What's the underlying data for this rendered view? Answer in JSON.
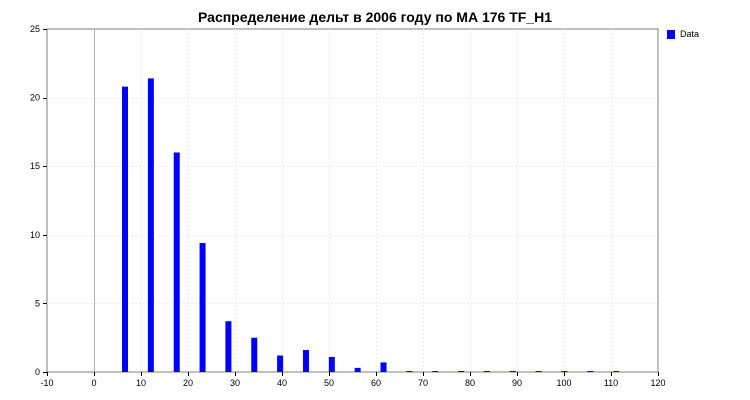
{
  "chart_data": {
    "type": "bar",
    "title": "Распределение дельт в 2006 году по МА 176 TF_H1",
    "xlabel": "",
    "ylabel": "",
    "xlim": [
      -10,
      120
    ],
    "ylim": [
      0,
      25
    ],
    "x_ticks": [
      "-10",
      "0",
      "10",
      "20",
      "30",
      "40",
      "50",
      "60",
      "70",
      "80",
      "90",
      "100",
      "110",
      "120"
    ],
    "y_ticks": [
      "0",
      "5",
      "10",
      "15",
      "20",
      "25"
    ],
    "grid": true,
    "legend_position": "top-right",
    "series": [
      {
        "name": "Data",
        "color": "#0000ff",
        "x": [
          6.6,
          12.1,
          17.6,
          23.1,
          28.6,
          34.1,
          39.6,
          45.1,
          50.6,
          56.1,
          61.6,
          67.1,
          72.6,
          78.1,
          83.6,
          89.1,
          94.6,
          100.1,
          105.6,
          111.1
        ],
        "values": [
          20.8,
          21.4,
          16.0,
          9.4,
          3.7,
          2.5,
          1.2,
          1.6,
          1.1,
          0.3,
          0.7,
          0.05,
          0.05,
          0.05,
          0.05,
          0.05,
          0.05,
          0.05,
          0.05,
          0.05
        ]
      }
    ]
  }
}
